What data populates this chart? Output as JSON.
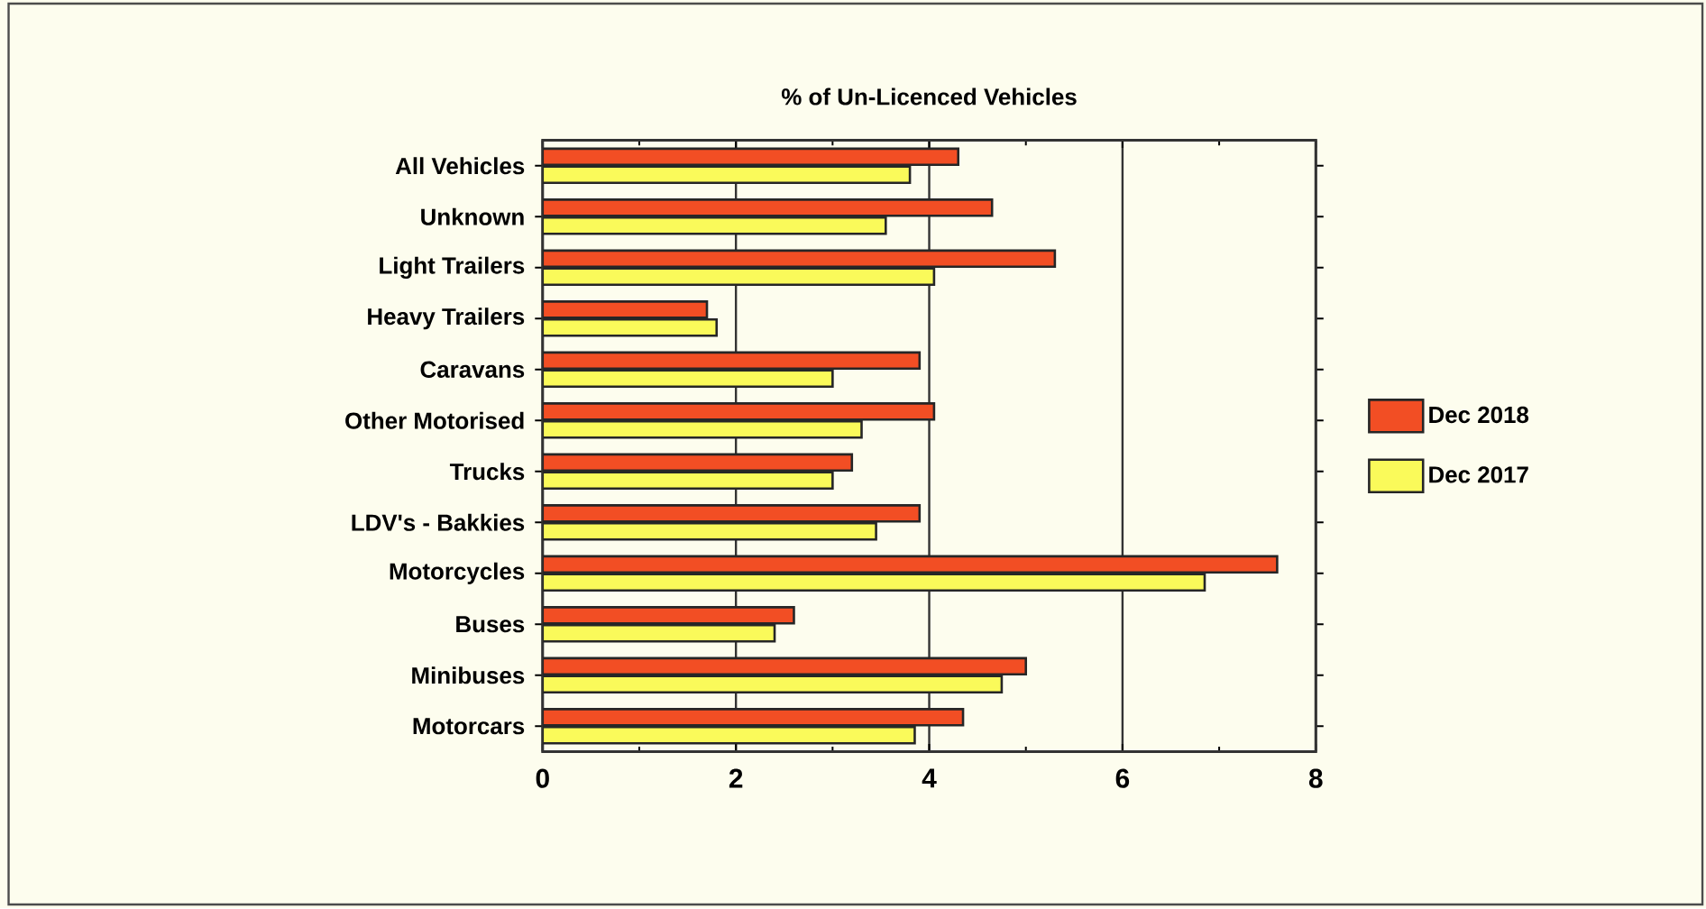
{
  "chart_data": {
    "type": "bar",
    "orientation": "horizontal",
    "title": "% of Un-Licenced Vehicles",
    "categories": [
      "All Vehicles",
      "Unknown",
      "Light Trailers",
      "Heavy Trailers",
      "Caravans",
      "Other Motorised",
      "Trucks",
      "LDV's - Bakkies",
      "Motorcycles",
      "Buses",
      "Minibuses",
      "Motorcars"
    ],
    "series": [
      {
        "name": "Dec  2018",
        "color": "#f24e24",
        "values": [
          4.3,
          4.65,
          5.3,
          1.7,
          3.9,
          4.05,
          3.2,
          3.9,
          7.6,
          2.6,
          5.0,
          4.35
        ]
      },
      {
        "name": "Dec  2017",
        "color": "#fafa5a",
        "values": [
          3.8,
          3.55,
          4.05,
          1.8,
          3.0,
          3.3,
          3.0,
          3.45,
          6.85,
          2.4,
          4.75,
          3.85
        ]
      }
    ],
    "xlim": [
      0,
      8
    ],
    "xticks": [
      0,
      2,
      4,
      6,
      8
    ],
    "grid": "x",
    "legend": "right"
  }
}
